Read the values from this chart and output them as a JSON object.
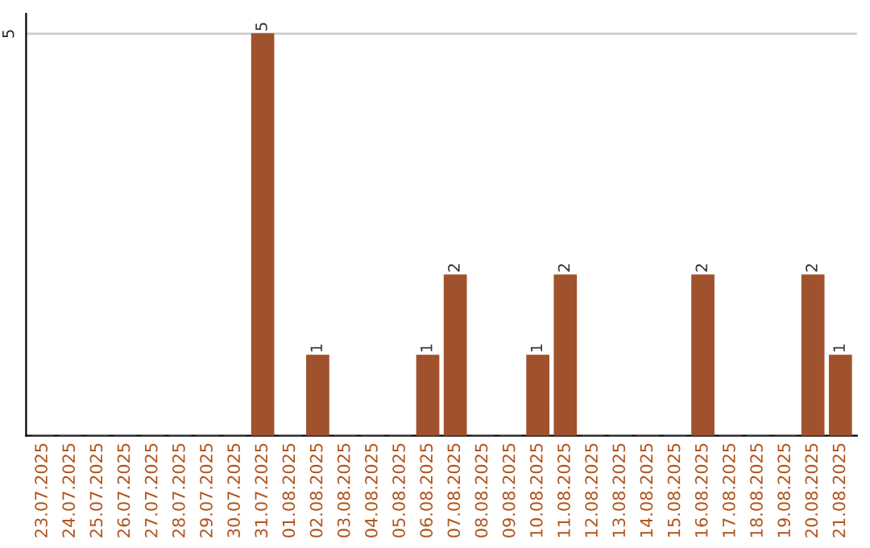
{
  "chart_data": {
    "type": "bar",
    "categories": [
      "23.07.2025",
      "24.07.2025",
      "25.07.2025",
      "26.07.2025",
      "27.07.2025",
      "28.07.2025",
      "29.07.2025",
      "30.07.2025",
      "31.07.2025",
      "01.08.2025",
      "02.08.2025",
      "03.08.2025",
      "04.08.2025",
      "05.08.2025",
      "06.08.2025",
      "07.08.2025",
      "08.08.2025",
      "09.08.2025",
      "10.08.2025",
      "11.08.2025",
      "12.08.2025",
      "13.08.2025",
      "14.08.2025",
      "15.08.2025",
      "16.08.2025",
      "17.08.2025",
      "18.08.2025",
      "19.08.2025",
      "20.08.2025",
      "21.08.2025"
    ],
    "values": [
      0,
      0,
      0,
      0,
      0,
      0,
      0,
      0,
      5,
      0,
      1,
      0,
      0,
      0,
      1,
      2,
      0,
      0,
      1,
      2,
      0,
      0,
      0,
      0,
      2,
      0,
      0,
      0,
      2,
      1
    ],
    "value_labels": [
      null,
      null,
      null,
      null,
      null,
      null,
      null,
      null,
      "5",
      null,
      "1",
      null,
      null,
      null,
      "1",
      "2",
      null,
      null,
      "1",
      "2",
      null,
      null,
      null,
      null,
      "2",
      null,
      null,
      null,
      "2",
      "1"
    ],
    "color": "#a0522d",
    "ylim": [
      0,
      5.25
    ],
    "yticks": [
      5
    ],
    "grid": "y",
    "legend": false
  }
}
